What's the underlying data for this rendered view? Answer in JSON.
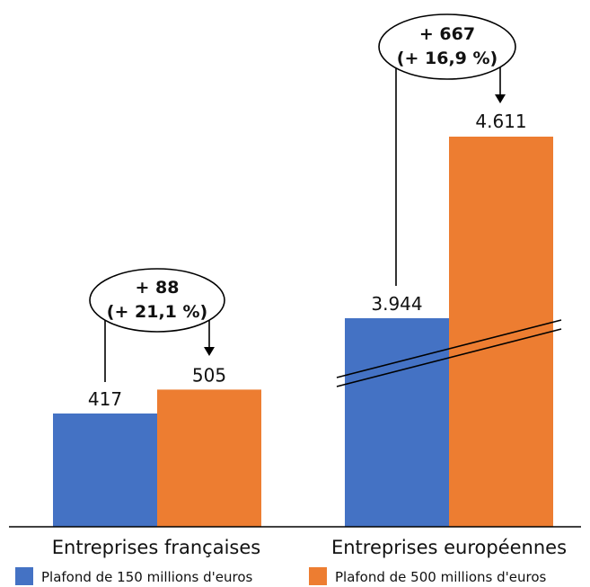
{
  "colors": {
    "series_150": "#4472c4",
    "series_500": "#ed7d31",
    "axis": "#000000"
  },
  "chart_data": {
    "type": "bar",
    "categories": [
      "Entreprises françaises",
      "Entreprises européennes"
    ],
    "series": [
      {
        "name": "Plafond de 150 millions d'euros",
        "values": [
          417,
          3944
        ],
        "labels": [
          "417",
          "3.944"
        ]
      },
      {
        "name": "Plafond de 500 millions d'euros",
        "values": [
          505,
          4611
        ],
        "labels": [
          "505",
          "4.611"
        ]
      }
    ],
    "annotations": [
      {
        "category": "Entreprises françaises",
        "line1": "+ 88",
        "line2": "(+ 21,1 %)"
      },
      {
        "category": "Entreprises européennes",
        "line1": "+ 667",
        "line2": "(+ 16,9 %)"
      }
    ],
    "axis_break": true,
    "legend_position": "bottom",
    "grid": false
  }
}
